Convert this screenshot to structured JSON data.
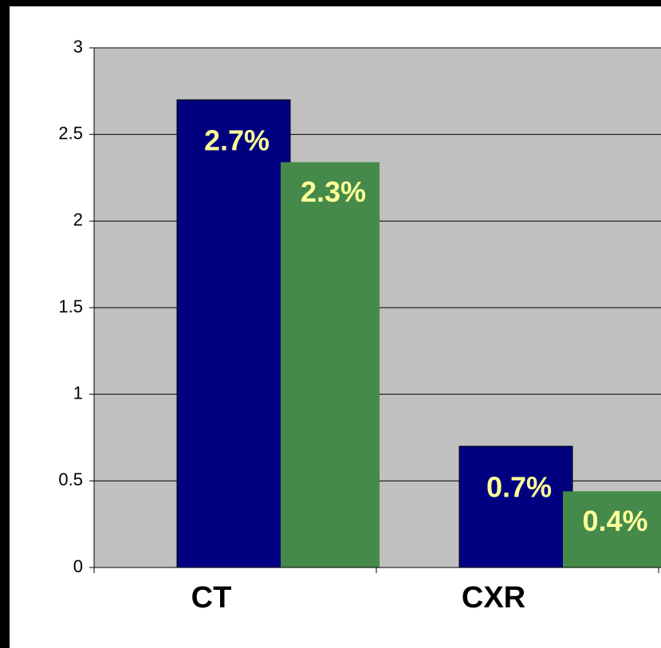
{
  "chart_data": {
    "type": "bar",
    "categories": [
      "CT",
      "CXR"
    ],
    "series": [
      {
        "color": "#000080",
        "values": [
          2.7,
          0.7
        ],
        "value_labels": [
          "2.7%",
          "0.7%"
        ]
      },
      {
        "color": "#458a4a",
        "values": [
          2.34,
          0.44
        ],
        "value_labels": [
          "2.3%",
          "0.4%"
        ]
      }
    ],
    "ylim": [
      0,
      3
    ],
    "yticks": [
      0,
      0.5,
      1,
      1.5,
      2,
      2.5,
      3
    ],
    "grid": true
  }
}
